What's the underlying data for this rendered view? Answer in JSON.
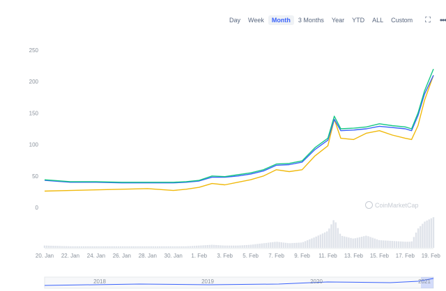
{
  "toolbar": {
    "ranges": [
      "Day",
      "Week",
      "Month",
      "3 Months",
      "Year",
      "YTD",
      "ALL",
      "Custom"
    ],
    "active_index": 2,
    "fullscreen_icon": "fullscreen-icon",
    "menu_icon": "more-menu-icon"
  },
  "watermark": {
    "text": "CoinMarketCap",
    "logo_icon": "coinmarketcap-logo-icon"
  },
  "chart_data": {
    "type": "line",
    "title": "",
    "xlabel": "",
    "ylabel": "",
    "ylim": [
      0,
      250
    ],
    "y_ticks": [
      0,
      50,
      100,
      150,
      200,
      250
    ],
    "grid": false,
    "x_ticks": [
      "20. Jan",
      "22. Jan",
      "24. Jan",
      "26. Jan",
      "28. Jan",
      "30. Jan",
      "1. Feb",
      "3. Feb",
      "5. Feb",
      "7. Feb",
      "9. Feb",
      "11. Feb",
      "13. Feb",
      "15. Feb",
      "17. Feb",
      "19. Feb"
    ],
    "x": [
      20,
      22,
      24,
      26,
      28,
      30,
      31,
      32,
      33,
      34,
      35,
      36,
      37,
      38,
      39,
      40,
      41,
      42,
      42.5,
      43,
      44,
      45,
      46,
      47,
      48,
      48.5,
      49,
      49.5,
      50.2
    ],
    "series": [
      {
        "color": "#16c784",
        "values": [
          44,
          41,
          41,
          40,
          40,
          40,
          41,
          43,
          50,
          49,
          52,
          55,
          60,
          69,
          70,
          74,
          95,
          110,
          145,
          125,
          126,
          128,
          133,
          130,
          128,
          125,
          150,
          185,
          220
        ]
      },
      {
        "color": "#3861fb",
        "values": [
          43,
          40,
          40,
          39,
          39,
          39,
          40,
          42,
          48,
          48,
          50,
          53,
          58,
          67,
          68,
          72,
          92,
          107,
          140,
          122,
          123,
          125,
          129,
          127,
          125,
          122,
          146,
          180,
          210
        ]
      },
      {
        "color": "#f0b90b",
        "values": [
          26,
          27,
          28,
          29,
          30,
          27,
          29,
          32,
          38,
          36,
          40,
          44,
          50,
          60,
          57,
          60,
          82,
          98,
          140,
          110,
          108,
          118,
          122,
          115,
          110,
          108,
          130,
          170,
          210
        ]
      }
    ],
    "volume": [
      3,
      2,
      2,
      2,
      2,
      2,
      2,
      3,
      4,
      3,
      3,
      4,
      6,
      8,
      6,
      7,
      14,
      22,
      38,
      16,
      12,
      16,
      10,
      9,
      8,
      8,
      25,
      34,
      40
    ],
    "navigator_ticks": [
      "2018",
      "2019",
      "2020",
      "2021"
    ]
  }
}
